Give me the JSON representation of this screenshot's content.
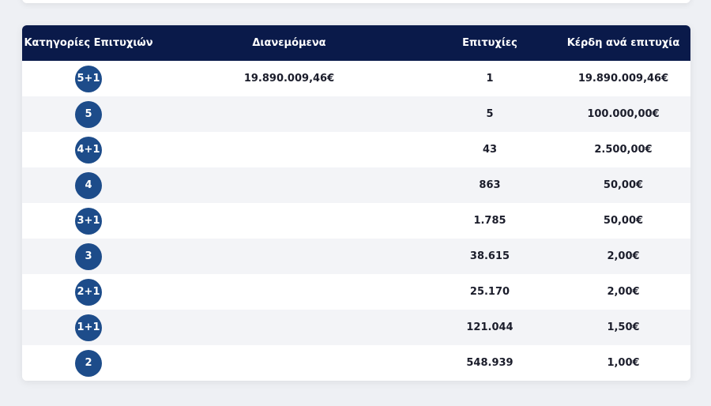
{
  "table": {
    "headers": {
      "category": "Κατηγορίες Επιτυχιών",
      "distributed": "Διανεμόμενα",
      "winners": "Επιτυχίες",
      "prize": "Κέρδη ανά επιτυχία"
    },
    "rows": [
      {
        "category": "5+1",
        "distributed": "19.890.009,46€",
        "winners": "1",
        "prize": "19.890.009,46€"
      },
      {
        "category": "5",
        "distributed": "",
        "winners": "5",
        "prize": "100.000,00€"
      },
      {
        "category": "4+1",
        "distributed": "",
        "winners": "43",
        "prize": "2.500,00€"
      },
      {
        "category": "4",
        "distributed": "",
        "winners": "863",
        "prize": "50,00€"
      },
      {
        "category": "3+1",
        "distributed": "",
        "winners": "1.785",
        "prize": "50,00€"
      },
      {
        "category": "3",
        "distributed": "",
        "winners": "38.615",
        "prize": "2,00€"
      },
      {
        "category": "2+1",
        "distributed": "",
        "winners": "25.170",
        "prize": "2,00€"
      },
      {
        "category": "1+1",
        "distributed": "",
        "winners": "121.044",
        "prize": "1,50€"
      },
      {
        "category": "2",
        "distributed": "",
        "winners": "548.939",
        "prize": "1,00€"
      }
    ]
  },
  "colors": {
    "header_bg": "#0a1a4a",
    "badge_bg": "#1d4c8a",
    "row_alt_bg": "#f3f4f7"
  }
}
